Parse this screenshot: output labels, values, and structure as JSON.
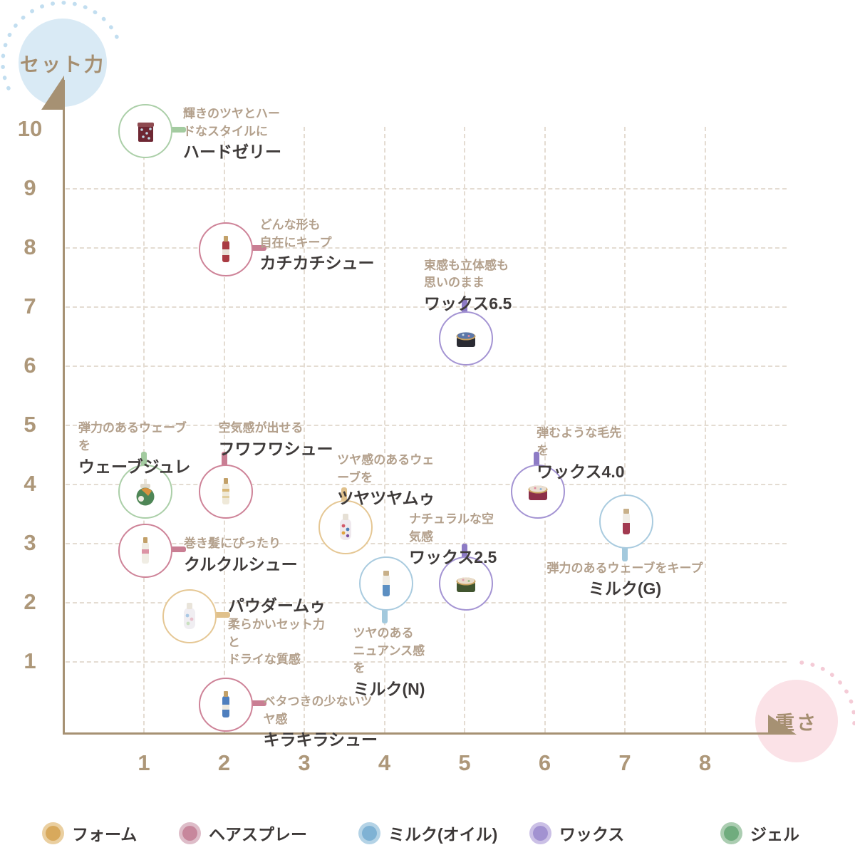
{
  "chart_data": {
    "type": "scatter",
    "title": "",
    "x_axis": {
      "label": "重さ",
      "ticks": [
        1,
        2,
        3,
        4,
        5,
        6,
        7,
        8
      ],
      "range": [
        0,
        8.8
      ]
    },
    "y_axis": {
      "label": "セット力",
      "ticks": [
        10,
        9,
        8,
        7,
        6,
        5,
        4,
        3,
        2,
        1
      ],
      "range": [
        0,
        10.8
      ]
    },
    "grid": true,
    "legend_position": "bottom",
    "categories": [
      {
        "id": "foam",
        "label": "フォーム",
        "dot": "#D8A95C",
        "ring": "#EACFA0",
        "circle": "#E5C794",
        "connector": "#E0C18C"
      },
      {
        "id": "hairspray",
        "label": "ヘアスプレー",
        "dot": "#C7879C",
        "ring": "#DEBDC9",
        "circle": "#CE8398",
        "connector": "#C97E93"
      },
      {
        "id": "milk_oil",
        "label": "ミルク(オイル)",
        "dot": "#7FB2D4",
        "ring": "#B4D3E6",
        "circle": "#A9CBDF",
        "connector": "#A3C9DD"
      },
      {
        "id": "wax",
        "label": "ワックス",
        "dot": "#A292D1",
        "ring": "#CBC0E6",
        "circle": "#A494D3",
        "connector": "#8D7BC5"
      },
      {
        "id": "gel",
        "label": "ジェル",
        "dot": "#70AC7E",
        "ring": "#ABCDB1",
        "circle": "#ABCFA8",
        "connector": "#A3CBA0"
      }
    ],
    "points": [
      {
        "name": "ハードゼリー",
        "desc": "輝きのツヤとハードなスタイルに",
        "category": "gel",
        "x": 1.0,
        "y": 10.0
      },
      {
        "name": "カチカチシュー",
        "desc": "どんな形も\n自在にキープ",
        "category": "hairspray",
        "x": 2.0,
        "y": 8.0
      },
      {
        "name": "ワックス6.5",
        "desc": "束感も立体感も\n思いのまま",
        "category": "wax",
        "x": 5.0,
        "y": 6.5
      },
      {
        "name": "ウェーブジュレ",
        "desc": "弾力のあるウェーブを",
        "category": "gel",
        "x": 1.0,
        "y": 3.9
      },
      {
        "name": "フワフワシュー",
        "desc": "空気感が出せる",
        "category": "hairspray",
        "x": 2.0,
        "y": 3.9
      },
      {
        "name": "ツヤツヤムゥ",
        "desc": "ツヤ感のあるウェーブを",
        "category": "foam",
        "x": 3.5,
        "y": 3.3
      },
      {
        "name": "ワックス4.0",
        "desc": "弾むような毛先を",
        "category": "wax",
        "x": 5.9,
        "y": 3.9
      },
      {
        "name": "クルクルシュー",
        "desc": "巻き髪にぴったり",
        "category": "hairspray",
        "x": 1.0,
        "y": 2.9
      },
      {
        "name": "ミルク(G)",
        "desc": "弾力のあるウェーブをキープ",
        "category": "milk_oil",
        "x": 7.0,
        "y": 3.4
      },
      {
        "name": "ワックス2.5",
        "desc": "ナチュラルな空気感",
        "category": "wax",
        "x": 5.0,
        "y": 2.35
      },
      {
        "name": "ミルク(N)",
        "desc": "ツヤのある\nニュアンス感を",
        "category": "milk_oil",
        "x": 4.0,
        "y": 2.35
      },
      {
        "name": "パウダームゥ",
        "desc": "柔らかいセット力と\nドライな質感",
        "category": "foam",
        "x": 1.55,
        "y": 1.8
      },
      {
        "name": "キラキラシュー",
        "desc": "ベタつきの少ないツヤ感",
        "category": "hairspray",
        "x": 2.0,
        "y": 0.3
      }
    ]
  }
}
